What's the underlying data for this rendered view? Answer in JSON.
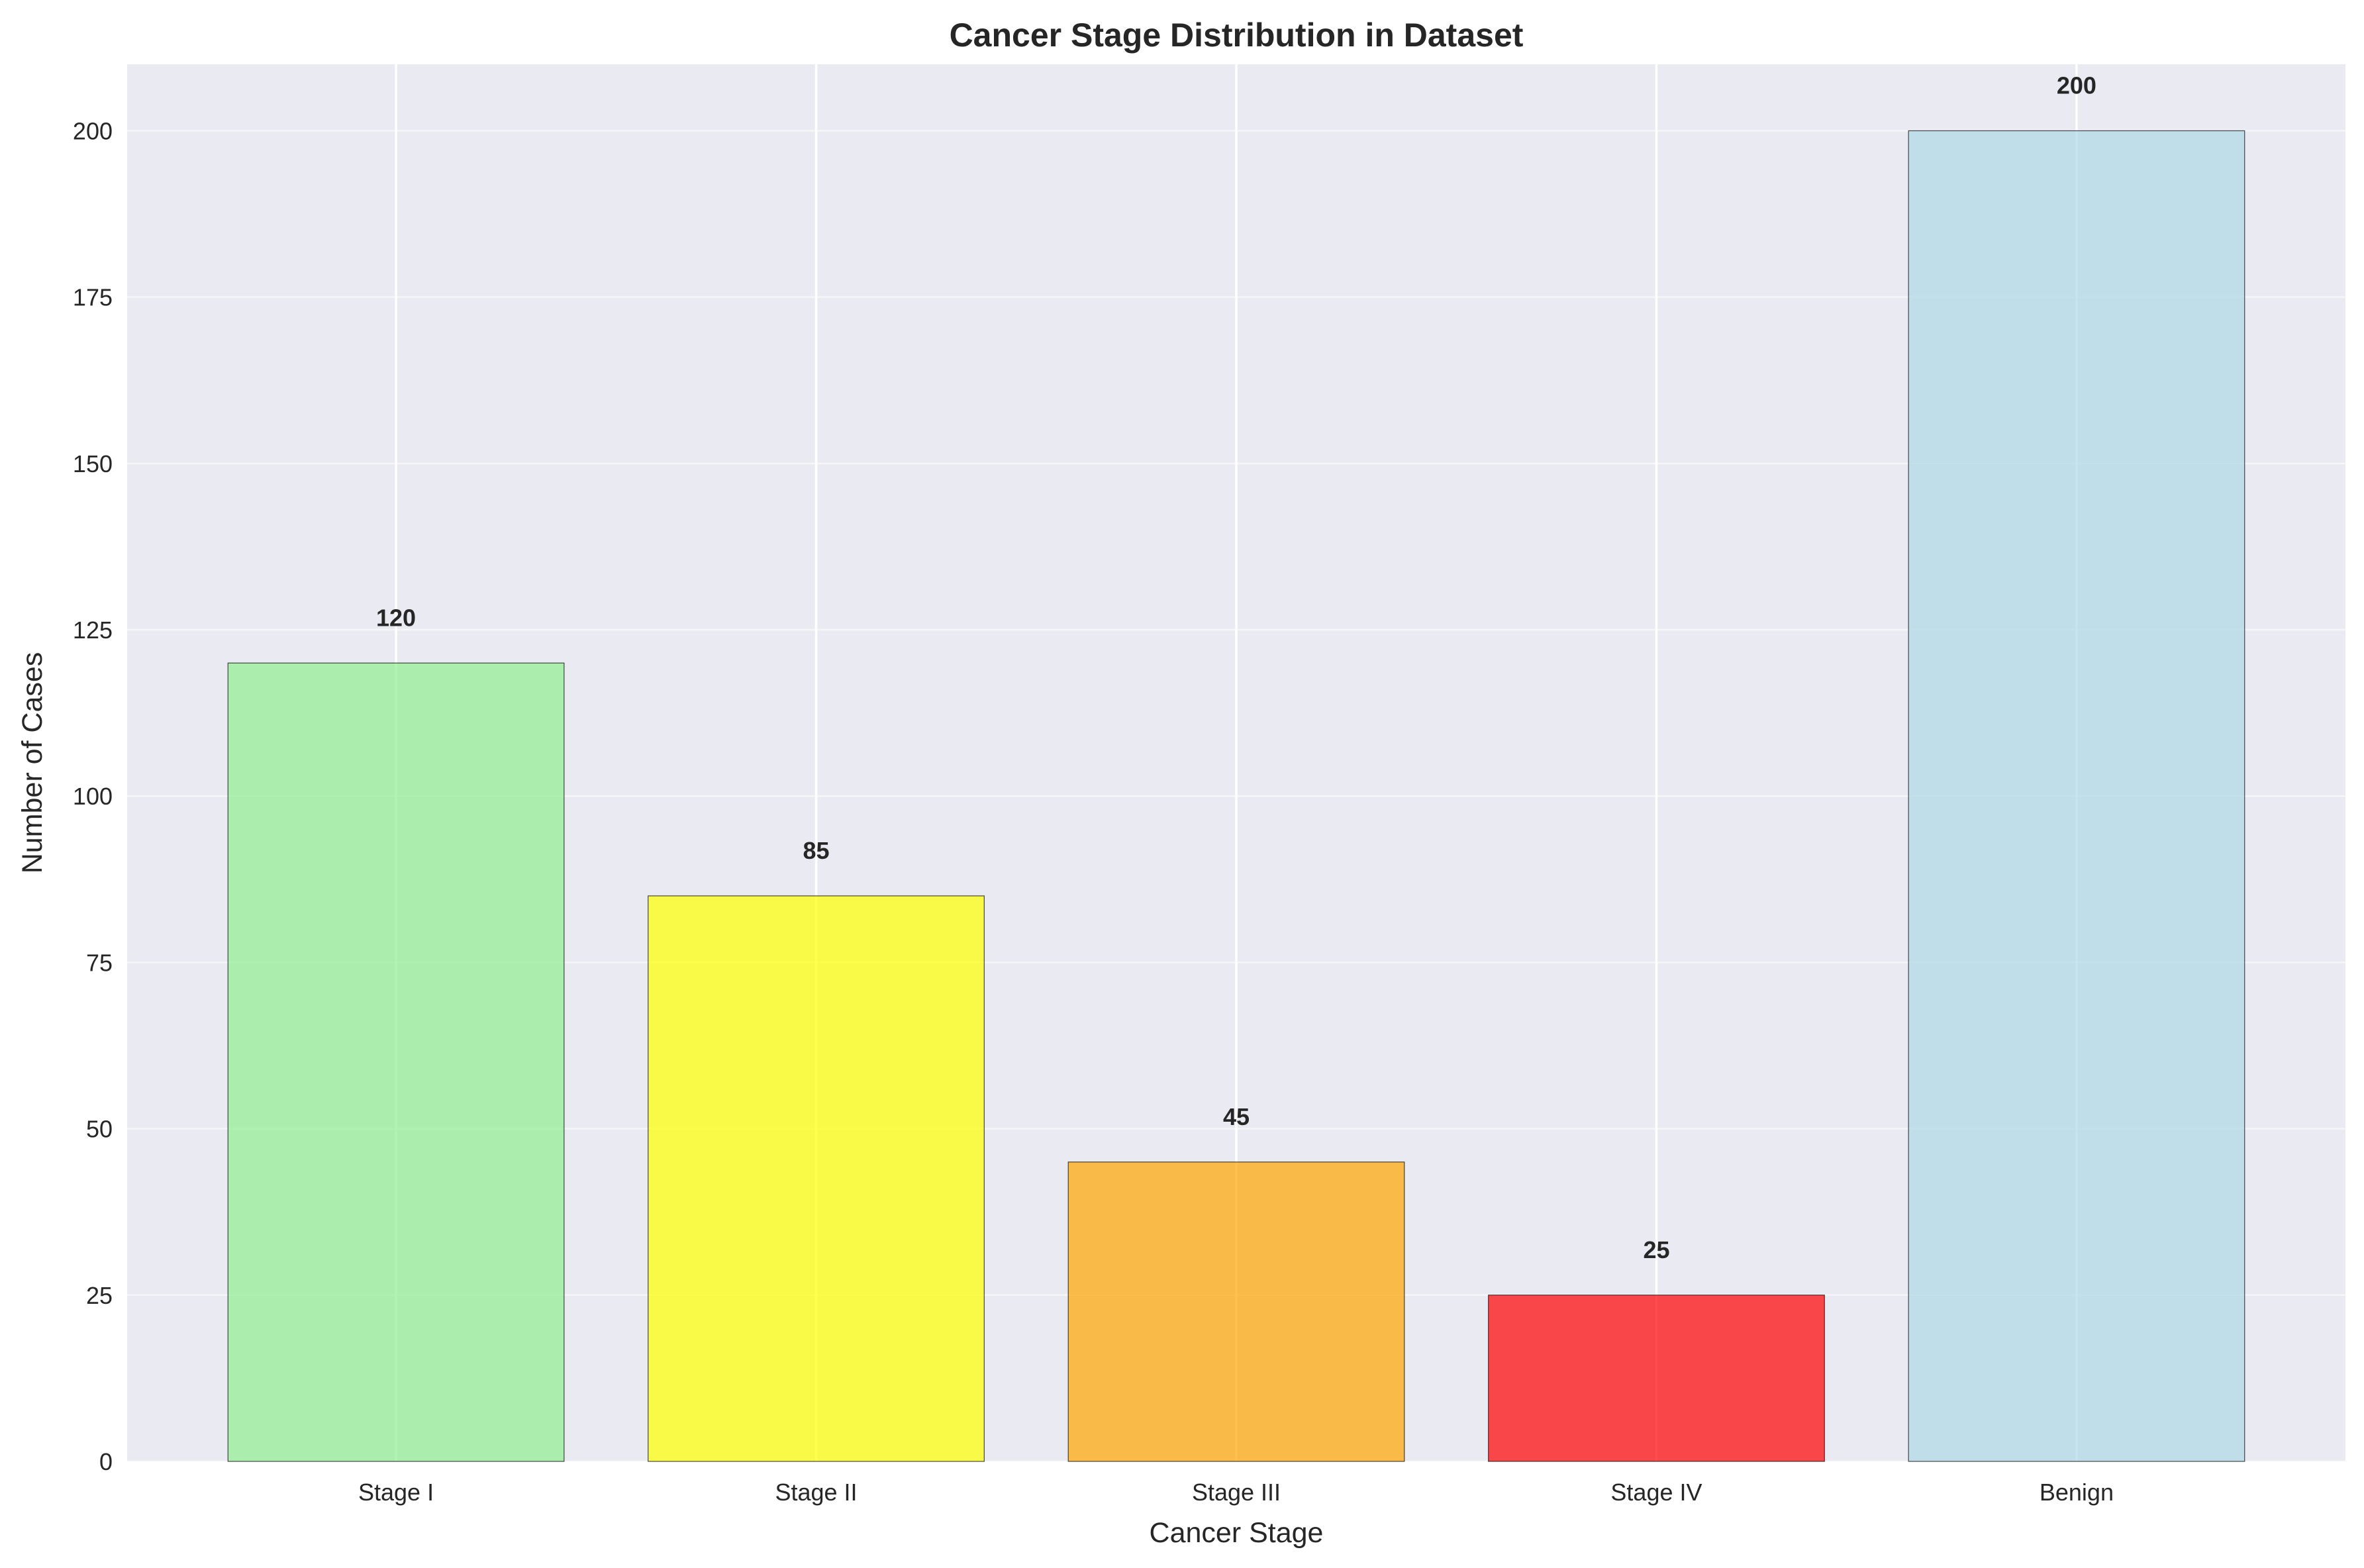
{
  "chart_data": {
    "type": "bar",
    "title": "Cancer Stage Distribution in Dataset",
    "xlabel": "Cancer Stage",
    "ylabel": "Number of Cases",
    "categories": [
      "Stage I",
      "Stage II",
      "Stage III",
      "Stage IV",
      "Benign"
    ],
    "values": [
      120,
      85,
      45,
      25,
      200
    ],
    "value_labels": [
      "120",
      "85",
      "45",
      "25",
      "200"
    ],
    "colors": [
      "#90EE90",
      "#FFFF00",
      "#FFA500",
      "#FF0000",
      "#ADD8E6"
    ],
    "ylim": [
      0,
      210
    ],
    "yticks": [
      0,
      25,
      50,
      75,
      100,
      125,
      150,
      175,
      200
    ],
    "grid": true,
    "background": "#EAEAF2"
  }
}
